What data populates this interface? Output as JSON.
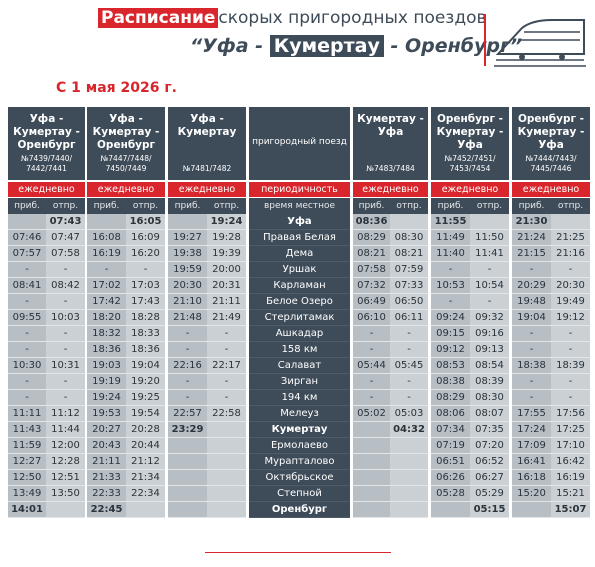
{
  "header": {
    "title_highlight": "Расписание",
    "title_rest": "скорых пригородных поездов",
    "route_start": "“Уфа - ",
    "route_highlight": "Кумертау",
    "route_end": " - Оренбург”"
  },
  "date": "С 1 мая 2026 г.",
  "table": {
    "station_header": "пригородный поезд",
    "periodicity_label": "периодичность",
    "local_time_label": "время местное",
    "arrive_label": "приб.",
    "depart_label": "отпр.",
    "trains": [
      {
        "route": "Уфа - Кумертау - Оренбург",
        "numbers": "№7439/7440/ 7442/7441",
        "periodicity": "ежедневно"
      },
      {
        "route": "Уфа - Кумертау - Оренбург",
        "numbers": "№7447/7448/ 7450/7449",
        "periodicity": "ежедневно"
      },
      {
        "route": "Уфа - Кумертау",
        "numbers": "№7481/7482",
        "periodicity": "ежедневно"
      },
      {
        "route": "Кумертау - Уфа",
        "numbers": "№7483/7484",
        "periodicity": "ежедневно"
      },
      {
        "route": "Оренбург - Кумертау - Уфа",
        "numbers": "№7452/7451/ 7453/7454",
        "periodicity": "ежедневно"
      },
      {
        "route": "Оренбург - Кумертау - Уфа",
        "numbers": "№7444/7443/ 7445/7446",
        "periodicity": "ежедневно"
      }
    ],
    "rows": [
      {
        "station": "Уфа",
        "times": [
          null,
          "07:43",
          null,
          "16:05",
          null,
          "19:24",
          "08:36",
          null,
          "11:55",
          null,
          "21:30",
          null
        ]
      },
      {
        "station": "Правая Белая",
        "times": [
          "07:46",
          "07:47",
          "16:08",
          "16:09",
          "19:27",
          "19:28",
          "08:29",
          "08:30",
          "11:49",
          "11:50",
          "21:24",
          "21:25"
        ]
      },
      {
        "station": "Дема",
        "times": [
          "07:57",
          "07:58",
          "16:19",
          "16:20",
          "19:38",
          "19:39",
          "08:21",
          "08:21",
          "11:40",
          "11:41",
          "21:15",
          "21:16"
        ]
      },
      {
        "station": "Уршак",
        "times": [
          "-",
          "-",
          "-",
          "-",
          "19:59",
          "20:00",
          "07:58",
          "07:59",
          "-",
          "-",
          "-",
          "-"
        ]
      },
      {
        "station": "Карламан",
        "times": [
          "08:41",
          "08:42",
          "17:02",
          "17:03",
          "20:30",
          "20:31",
          "07:32",
          "07:33",
          "10:53",
          "10:54",
          "20:29",
          "20:30"
        ]
      },
      {
        "station": "Белое Озеро",
        "times": [
          "-",
          "-",
          "17:42",
          "17:43",
          "21:10",
          "21:11",
          "06:49",
          "06:50",
          "-",
          "-",
          "19:48",
          "19:49"
        ]
      },
      {
        "station": "Стерлитамак",
        "times": [
          "09:55",
          "10:03",
          "18:20",
          "18:28",
          "21:48",
          "21:49",
          "06:10",
          "06:11",
          "09:24",
          "09:32",
          "19:04",
          "19:12"
        ]
      },
      {
        "station": "Ашкадар",
        "times": [
          "-",
          "-",
          "18:32",
          "18:33",
          "-",
          "-",
          "-",
          "-",
          "09:15",
          "09:16",
          "-",
          "-"
        ]
      },
      {
        "station": "158 км",
        "times": [
          "-",
          "-",
          "18:36",
          "18:36",
          "-",
          "-",
          "-",
          "-",
          "09:12",
          "09:13",
          "-",
          "-"
        ]
      },
      {
        "station": "Салават",
        "times": [
          "10:30",
          "10:31",
          "19:03",
          "19:04",
          "22:16",
          "22:17",
          "05:44",
          "05:45",
          "08:53",
          "08:54",
          "18:38",
          "18:39"
        ]
      },
      {
        "station": "Зирган",
        "times": [
          "-",
          "-",
          "19:19",
          "19:20",
          "-",
          "-",
          "-",
          "-",
          "08:38",
          "08:39",
          "-",
          "-"
        ]
      },
      {
        "station": "194 км",
        "times": [
          "-",
          "-",
          "19:24",
          "19:25",
          "-",
          "-",
          "-",
          "-",
          "08:29",
          "08:30",
          "-",
          "-"
        ]
      },
      {
        "station": "Мелеуз",
        "times": [
          "11:11",
          "11:12",
          "19:53",
          "19:54",
          "22:57",
          "22:58",
          "05:02",
          "05:03",
          "08:06",
          "08:07",
          "17:55",
          "17:56"
        ]
      },
      {
        "station": "Кумертау",
        "times": [
          "11:43",
          "11:44",
          "20:27",
          "20:28",
          "23:29",
          null,
          null,
          "04:32",
          "07:34",
          "07:35",
          "17:24",
          "17:25"
        ]
      },
      {
        "station": "Ермолаево",
        "times": [
          "11:59",
          "12:00",
          "20:43",
          "20:44",
          null,
          null,
          null,
          null,
          "07:19",
          "07:20",
          "17:09",
          "17:10"
        ]
      },
      {
        "station": "Мурапталово",
        "times": [
          "12:27",
          "12:28",
          "21:11",
          "21:12",
          null,
          null,
          null,
          null,
          "06:51",
          "06:52",
          "16:41",
          "16:42"
        ]
      },
      {
        "station": "Октябрьское",
        "times": [
          "12:50",
          "12:51",
          "21:33",
          "21:34",
          null,
          null,
          null,
          null,
          "06:26",
          "06:27",
          "16:18",
          "16:19"
        ]
      },
      {
        "station": "Степной",
        "times": [
          "13:49",
          "13:50",
          "22:33",
          "22:34",
          null,
          null,
          null,
          null,
          "05:28",
          "05:29",
          "15:20",
          "15:21"
        ]
      },
      {
        "station": "Оренбург",
        "times": [
          "14:01",
          null,
          "22:45",
          null,
          null,
          null,
          null,
          null,
          null,
          "05:15",
          null,
          "15:07"
        ]
      }
    ]
  }
}
